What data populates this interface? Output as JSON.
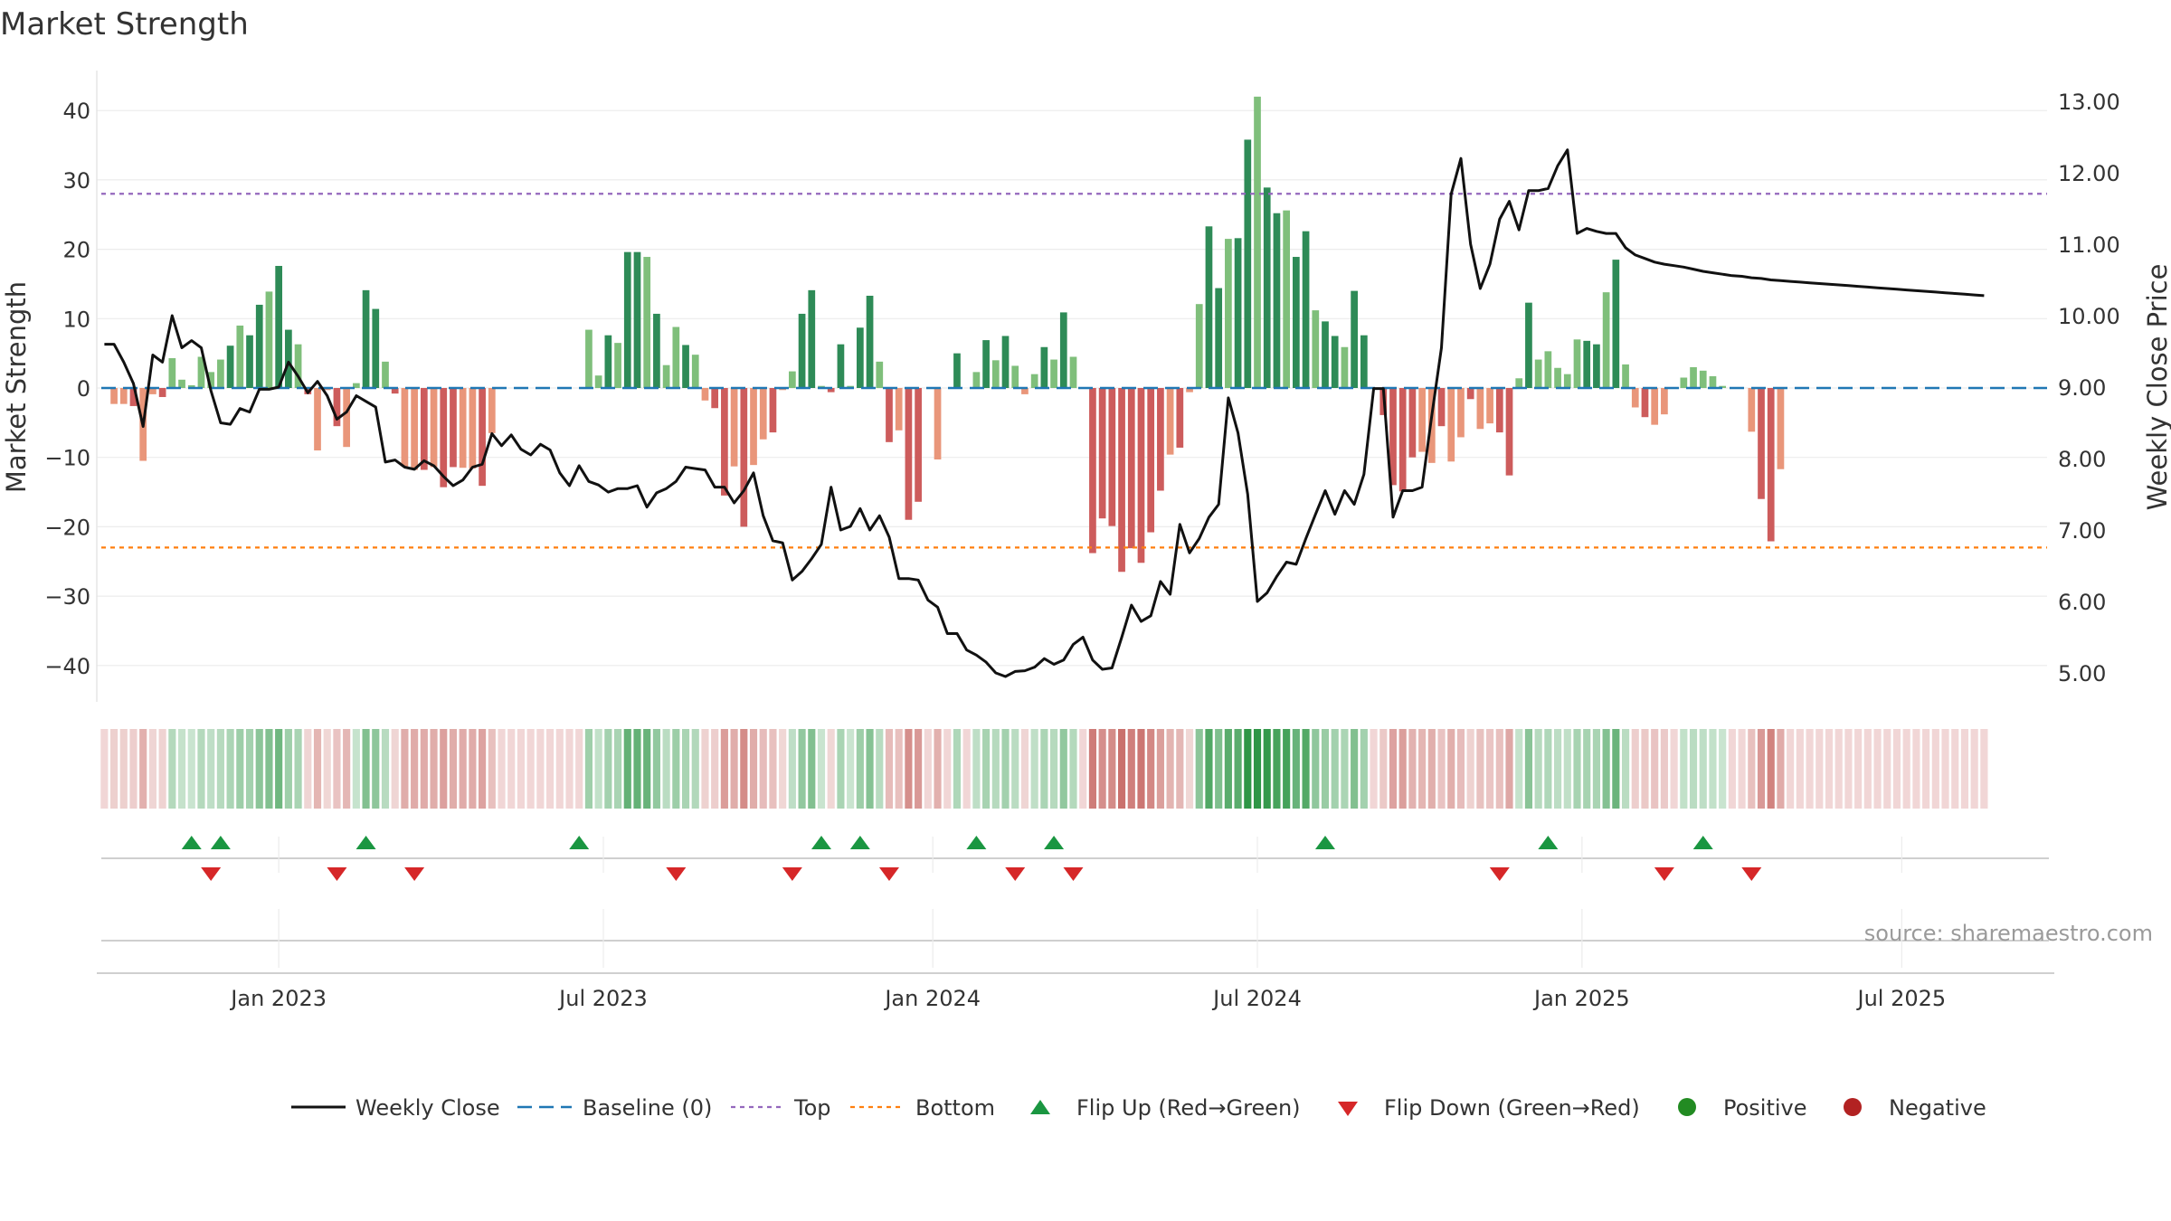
{
  "chart_data": {
    "type": "bar+line",
    "title": "Market Strength",
    "ylabel": "Market Strength",
    "y2label": "Weekly Close Price",
    "ylim": [
      -45,
      46
    ],
    "y2lim": [
      4.5,
      13.3
    ],
    "y_ticks": [
      40,
      30,
      20,
      10,
      0,
      -10,
      -20,
      -30,
      -40
    ],
    "y_tick_labels": [
      "40",
      "30",
      "20",
      "10",
      "0",
      "−10",
      "−20",
      "−30",
      "−40"
    ],
    "y2_ticks": [
      13,
      12,
      11,
      10,
      9,
      8,
      7,
      6,
      5
    ],
    "y2_tick_labels": [
      "13.00",
      "12.00",
      "11.00",
      "10.00",
      "9.00",
      "8.00",
      "7.00",
      "6.00",
      "5.00"
    ],
    "x_tick_positions": [
      18,
      51.5,
      85.5,
      119,
      152.5,
      185.5
    ],
    "x_tick_labels": [
      "Jan 2023",
      "Jul 2023",
      "Jan 2024",
      "Jul 2024",
      "Jan 2025",
      "Jul 2025"
    ],
    "top_level": 28,
    "bottom_level": -23,
    "baseline": 0,
    "weeks": 201,
    "strength": [
      0,
      -2.3,
      -2.3,
      -2.6,
      -10.5,
      -0.9,
      -1.3,
      4.3,
      1.2,
      0.4,
      4.5,
      2.3,
      4.1,
      6.1,
      9.0,
      7.6,
      12.0,
      13.9,
      17.6,
      8.4,
      6.3,
      -0.9,
      -9.0,
      -0.3,
      -5.5,
      -8.5,
      0.7,
      14.1,
      11.4,
      3.8,
      -0.8,
      -11.3,
      -11.8,
      -11.8,
      -11.4,
      -14.3,
      -11.4,
      -11.5,
      -11.6,
      -14.1,
      -6.5,
      0,
      0,
      0,
      0,
      0,
      0,
      0,
      0,
      0,
      8.4,
      1.8,
      7.6,
      6.5,
      19.6,
      19.6,
      18.9,
      10.7,
      3.3,
      8.8,
      6.2,
      4.8,
      -1.8,
      -2.9,
      -15.5,
      -11.3,
      -20.0,
      -11.1,
      -7.4,
      -6.4,
      -0.3,
      2.4,
      10.7,
      14.1,
      0.3,
      -0.6,
      6.3,
      0.3,
      8.7,
      13.3,
      3.8,
      -7.8,
      -6.1,
      -19.0,
      -16.4,
      0,
      -10.3,
      0,
      5.0,
      0,
      2.3,
      6.9,
      4.0,
      7.5,
      3.2,
      -0.9,
      2.0,
      5.9,
      4.1,
      10.9,
      4.5,
      0,
      -23.8,
      -18.8,
      -19.9,
      -26.5,
      -23.1,
      -25.2,
      -20.8,
      -14.8,
      -9.6,
      -8.6,
      -0.6,
      12.1,
      23.3,
      14.4,
      21.5,
      21.6,
      35.8,
      42.0,
      28.9,
      25.2,
      25.6,
      18.9,
      22.6,
      11.2,
      9.6,
      7.5,
      5.9,
      14.0,
      7.6,
      0,
      -3.9,
      -14.0,
      -14.9,
      -10.0,
      -9.2,
      -10.8,
      -5.5,
      -10.6,
      -7.1,
      -1.6,
      -5.9,
      -5.1,
      -6.4,
      -12.6,
      1.4,
      12.3,
      4.1,
      5.3,
      2.9,
      2.0,
      7.0,
      6.8,
      6.3,
      13.8,
      18.5,
      3.4,
      -2.8,
      -4.2,
      -5.3,
      -3.8,
      0,
      1.5,
      3.0,
      2.5,
      1.7,
      0.3,
      0,
      0,
      -6.3,
      -16.0,
      -22.1,
      -11.7,
      0,
      0,
      0,
      0,
      0,
      0,
      0,
      0,
      0,
      0,
      0,
      0,
      0,
      0,
      0,
      0,
      0,
      0,
      0,
      0,
      0
    ],
    "close": [
      9.6,
      9.6,
      9.35,
      9.05,
      8.45,
      9.45,
      9.35,
      10.0,
      9.55,
      9.65,
      9.55,
      8.95,
      8.5,
      8.48,
      8.7,
      8.65,
      8.97,
      8.97,
      9.0,
      9.35,
      9.15,
      8.92,
      9.08,
      8.88,
      8.55,
      8.65,
      8.88,
      8.8,
      8.72,
      7.95,
      7.98,
      7.88,
      7.85,
      7.97,
      7.9,
      7.75,
      7.62,
      7.7,
      7.88,
      7.92,
      8.35,
      8.18,
      8.33,
      8.13,
      8.05,
      8.2,
      8.12,
      7.8,
      7.62,
      7.9,
      7.68,
      7.63,
      7.53,
      7.58,
      7.58,
      7.62,
      7.32,
      7.52,
      7.58,
      7.68,
      7.88,
      7.86,
      7.84,
      7.6,
      7.6,
      7.38,
      7.55,
      7.8,
      7.2,
      6.85,
      6.82,
      6.3,
      6.42,
      6.6,
      6.8,
      7.6,
      7.0,
      7.05,
      7.3,
      7.0,
      7.2,
      6.9,
      6.32,
      6.32,
      6.3,
      6.02,
      5.92,
      5.55,
      5.55,
      5.32,
      5.25,
      5.15,
      5.0,
      4.95,
      5.02,
      5.03,
      5.08,
      5.2,
      5.12,
      5.18,
      5.4,
      5.5,
      5.18,
      5.05,
      5.07,
      5.5,
      5.95,
      5.72,
      5.8,
      6.28,
      6.1,
      7.08,
      6.68,
      6.88,
      7.18,
      7.36,
      8.85,
      8.36,
      7.5,
      6.0,
      6.12,
      6.35,
      6.55,
      6.52,
      6.88,
      7.22,
      7.55,
      7.22,
      7.55,
      7.36,
      7.78,
      8.98,
      8.98,
      7.18,
      7.55,
      7.55,
      7.6,
      8.6,
      9.55,
      11.7,
      12.2,
      11.0,
      10.38,
      10.72,
      11.35,
      11.6,
      11.2,
      11.75,
      11.75,
      11.78,
      12.1,
      12.32,
      11.15,
      11.22,
      11.18,
      11.15,
      11.15,
      10.95,
      10.85,
      10.8,
      10.75,
      10.72,
      10.7,
      10.68,
      10.65,
      10.62,
      10.6,
      10.58,
      10.56,
      10.55,
      10.53,
      10.52,
      10.5,
      10.49,
      10.48,
      10.47,
      10.46,
      10.45,
      10.44,
      10.43,
      10.42,
      10.41,
      10.4,
      10.39,
      10.38,
      10.37,
      10.36,
      10.35,
      10.34,
      10.33,
      10.32,
      10.31,
      10.3,
      10.29,
      10.28
    ],
    "flip_up_weeks": [
      9,
      12,
      27,
      49,
      74,
      78,
      90,
      98,
      126,
      149,
      165
    ],
    "flip_down_weeks": [
      11,
      24,
      32,
      59,
      71,
      81,
      94,
      100,
      144,
      161,
      170
    ],
    "legend": [
      "Weekly Close",
      "Baseline (0)",
      "Top",
      "Bottom",
      "Flip Up (Red→Green)",
      "Flip Down (Green→Red)",
      "Positive",
      "Negative"
    ],
    "source": "source: sharemaestro.com"
  },
  "colors": {
    "strong_green": "#2e8b57",
    "light_green": "#7fbf7b",
    "strong_red": "#cd5c5c",
    "light_red": "#e9967a",
    "close_line": "#111111",
    "baseline": "#1f77b4",
    "top": "#9467bd",
    "bottom": "#ff7f0e",
    "flip_up": "#1a9641",
    "flip_down": "#d62728",
    "positive": "#228b22",
    "negative": "#b22222"
  }
}
